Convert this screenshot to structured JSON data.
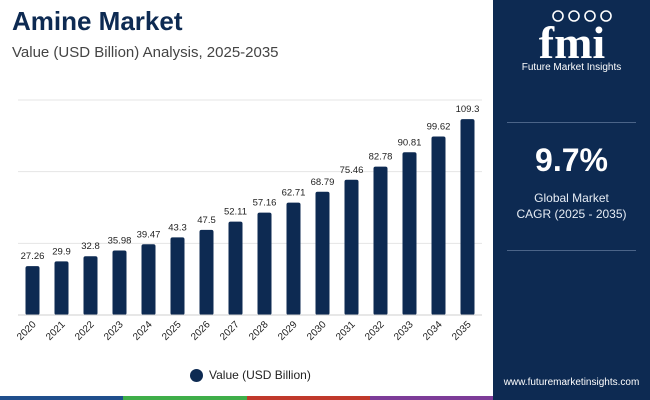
{
  "header": {
    "title": "Amine Market",
    "subtitle": "Value (USD Billion) Analysis, 2025-2035"
  },
  "chart_data": {
    "type": "bar",
    "title": "Amine Market",
    "subtitle": "Value (USD Billion) Analysis, 2025-2035",
    "categories": [
      "2020",
      "2021",
      "2022",
      "2023",
      "2024",
      "2025",
      "2026",
      "2027",
      "2028",
      "2029",
      "2030",
      "2031",
      "2032",
      "2033",
      "2034",
      "2035"
    ],
    "series": [
      {
        "name": "Value (USD Billion)",
        "values": [
          27.26,
          29.9,
          32.8,
          35.98,
          39.47,
          43.3,
          47.5,
          52.11,
          57.16,
          62.71,
          68.79,
          75.46,
          82.78,
          90.81,
          99.62,
          109.3
        ],
        "labels": [
          "27.26",
          "29.9",
          "32.8",
          "35.98",
          "39.47",
          "43.3",
          "47.5",
          "52.11",
          "57.16",
          "62.71",
          "68.79",
          "75.46",
          "82.78",
          "90.81",
          "99.62",
          "109.3"
        ]
      }
    ],
    "xlabel": "",
    "ylabel": "",
    "ylim": [
      0,
      120
    ],
    "grid": true,
    "legend": "bottom-center"
  },
  "legend": {
    "label": "Value (USD Billion)"
  },
  "colors": {
    "bar": "#0d2a52",
    "panel": "#0d2a52",
    "strip": [
      "#1f4e8c",
      "#3fae49",
      "#c0392b",
      "#7d3c98"
    ]
  },
  "side_panel": {
    "logo_text": "fmi",
    "logo_caption": "Future Market Insights",
    "cagr_value": "9.7%",
    "cagr_label_line1": "Global Market",
    "cagr_label_line2": "CAGR (2025 - 2035)",
    "url": "www.futuremarketinsights.com"
  }
}
